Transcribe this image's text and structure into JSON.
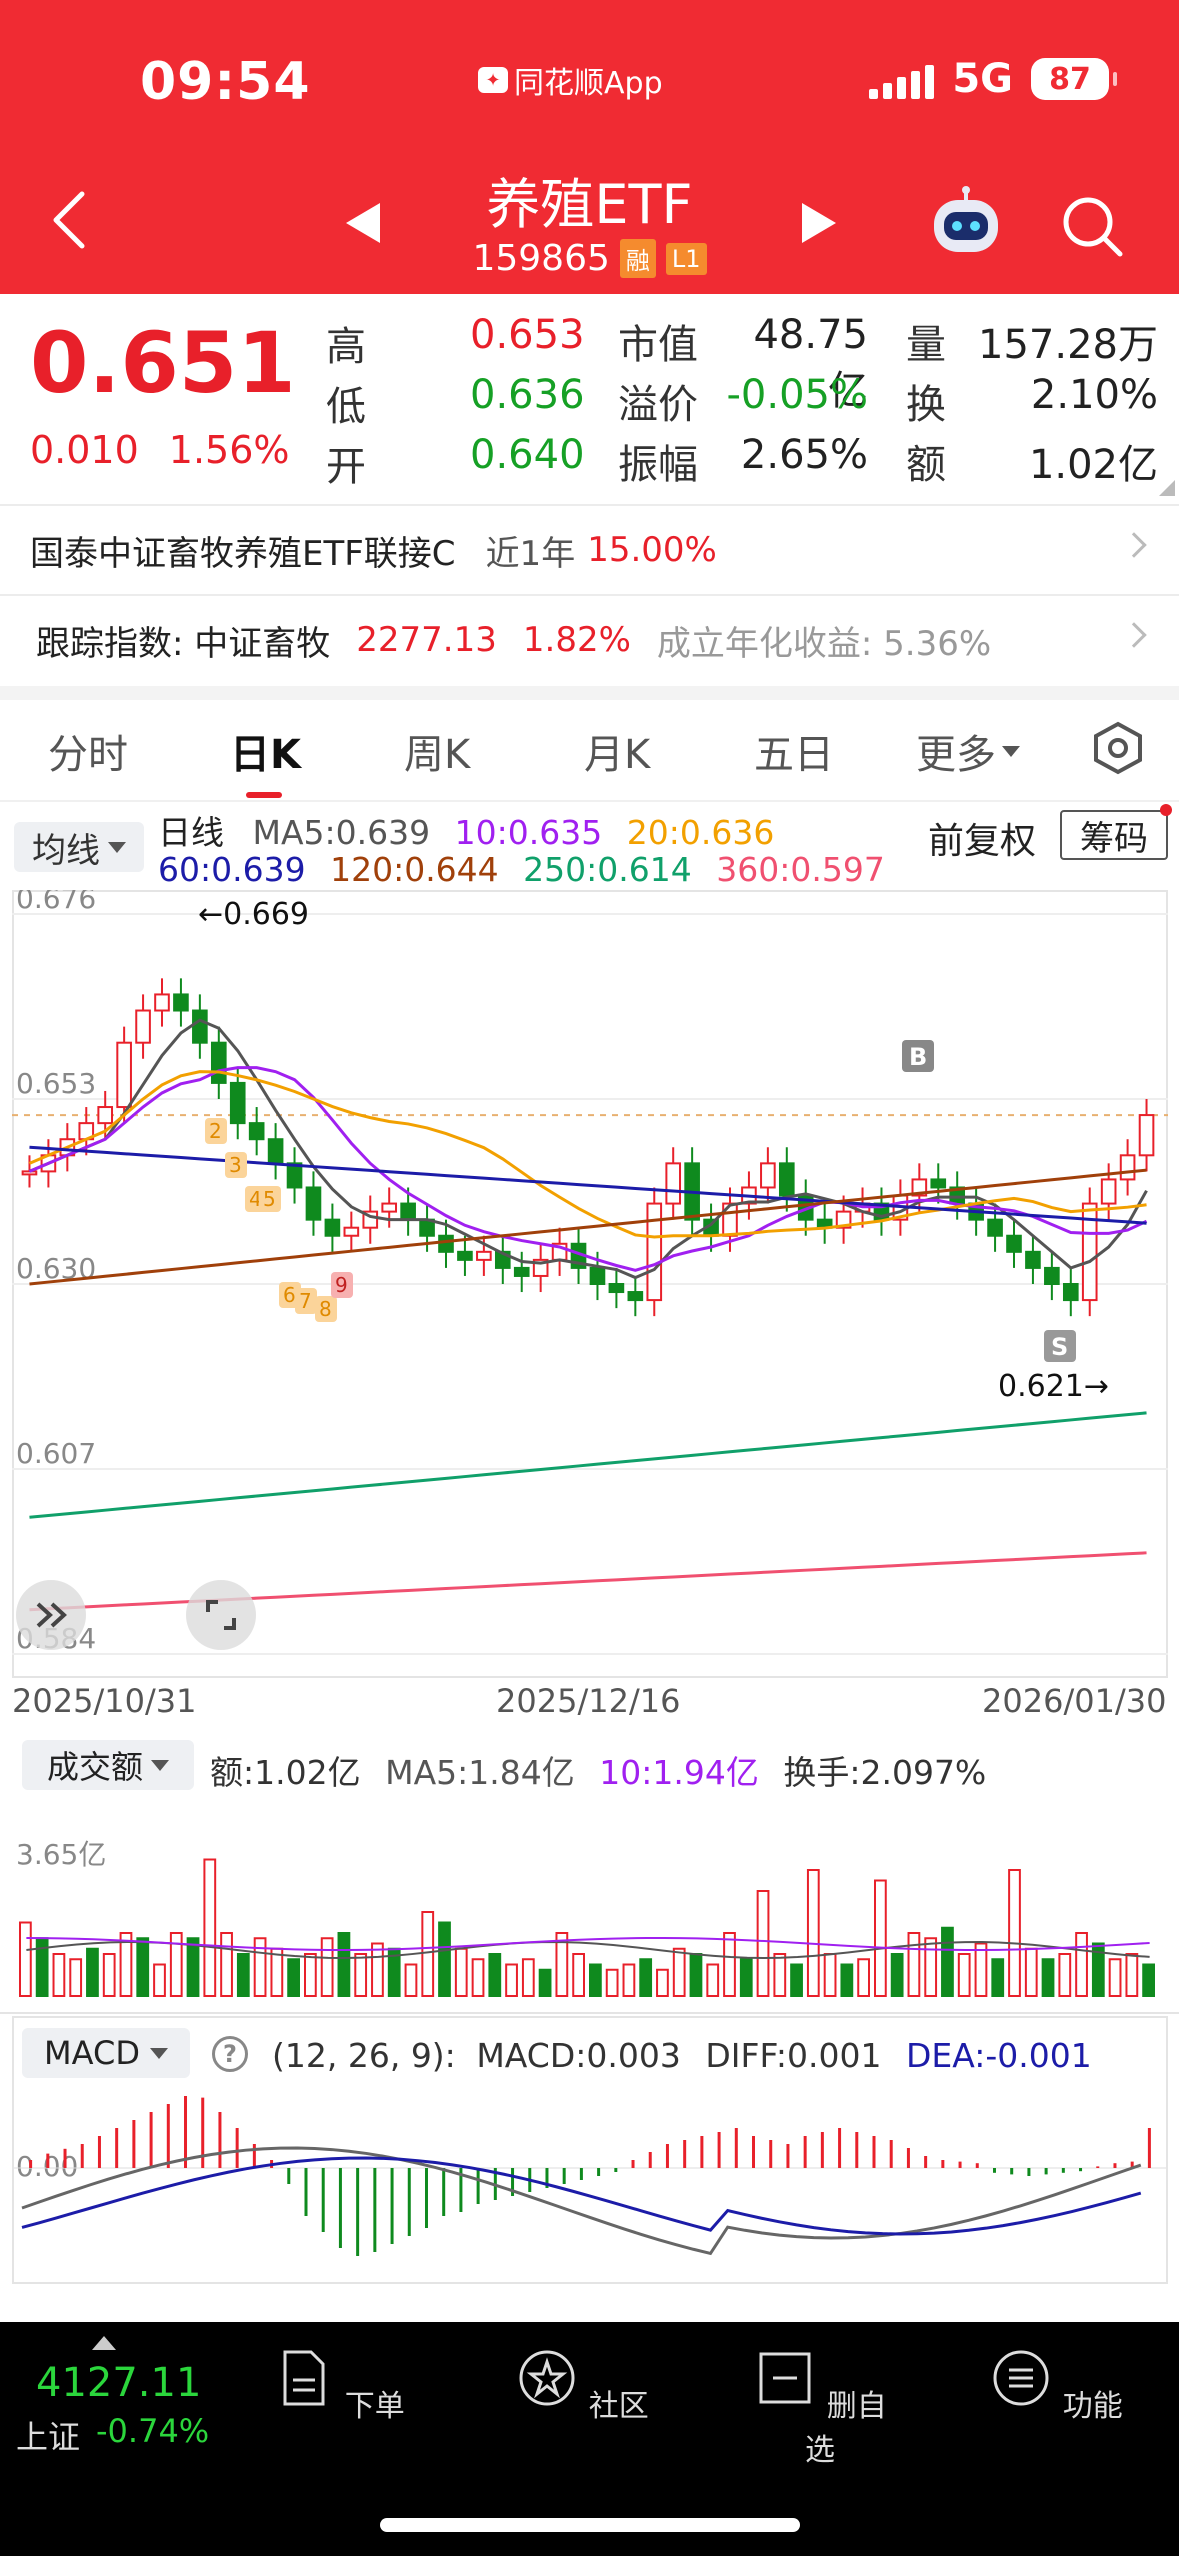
{
  "status_bar": {
    "time": "09:54",
    "app_name": "同花顺App",
    "network": "5G",
    "battery": "87"
  },
  "header": {
    "title": "养殖ETF",
    "code": "159865",
    "tags": [
      "融",
      "L1"
    ]
  },
  "quote": {
    "price": "0.651",
    "change": "0.010",
    "change_pct": "1.56%",
    "rows": [
      {
        "l1": "高",
        "v1": "0.653",
        "l2": "市值",
        "v2": "48.75亿",
        "l3": "量",
        "v3": "157.28万"
      },
      {
        "l1": "低",
        "v1": "0.636",
        "l2": "溢价",
        "v2": "-0.05%",
        "l3": "换",
        "v3": "2.10%"
      },
      {
        "l1": "开",
        "v1": "0.640",
        "l2": "振幅",
        "v2": "2.65%",
        "l3": "额",
        "v3": "1.02亿"
      }
    ]
  },
  "fund_row": {
    "name": "国泰中证畜牧养殖ETF联接C",
    "period": "近1年",
    "return": "15.00%"
  },
  "index_row": {
    "label": "跟踪指数: 中证畜牧",
    "value": "2277.13",
    "pct": "1.82%",
    "annual": "成立年化收益: 5.36%"
  },
  "tabs": [
    "分时",
    "日K",
    "周K",
    "月K",
    "五日",
    "更多"
  ],
  "ma_legend": {
    "selector": "均线",
    "label": "日线",
    "ma5": "MA5:0.639",
    "ma10": "10:0.635",
    "ma20": "20:0.636",
    "ma60": "60:0.639",
    "ma120": "120:0.644",
    "ma250": "250:0.614",
    "ma360": "360:0.597",
    "fq": "前复权",
    "chips": "筹码"
  },
  "colors": {
    "ma5": "#555555",
    "ma10": "#a020f0",
    "ma20": "#f2a000",
    "ma60": "#1c1ca8",
    "ma120": "#a0400a",
    "ma250": "#10a06a",
    "ma360": "#f05070",
    "up": "#e8202a",
    "down": "#0f8a1e"
  },
  "chart_data": {
    "type": "candlestick",
    "y_ticks": [
      "0.676",
      "0.653",
      "0.630",
      "0.607",
      "0.584"
    ],
    "ylim": [
      0.584,
      0.676
    ],
    "x_labels": [
      "2025/10/31",
      "2025/12/16",
      "2026/01/30"
    ],
    "high_marker": "←0.669",
    "low_marker": "0.621→",
    "signals": [
      "B",
      "S"
    ],
    "dots": [
      "2",
      "3",
      "4",
      "5",
      "6",
      "7",
      "8",
      "9"
    ]
  },
  "volume": {
    "selector": "成交额",
    "amount": "额:1.02亿",
    "ma5": "MA5:1.84亿",
    "ma10": "10:1.94亿",
    "turnover": "换手:2.097%",
    "y_tick": "3.65亿"
  },
  "macd": {
    "selector": "MACD",
    "help": "?",
    "params": "(12, 26, 9):",
    "macd": "MACD:0.003",
    "diff": "DIFF:0.001",
    "dea": "DEA:-0.001",
    "y_tick": "0.00"
  },
  "bottom": {
    "index_value": "4127.11",
    "index_label": "上证",
    "index_change": "-0.74%",
    "nav": [
      "下单",
      "社区",
      "删自选",
      "功能"
    ]
  }
}
